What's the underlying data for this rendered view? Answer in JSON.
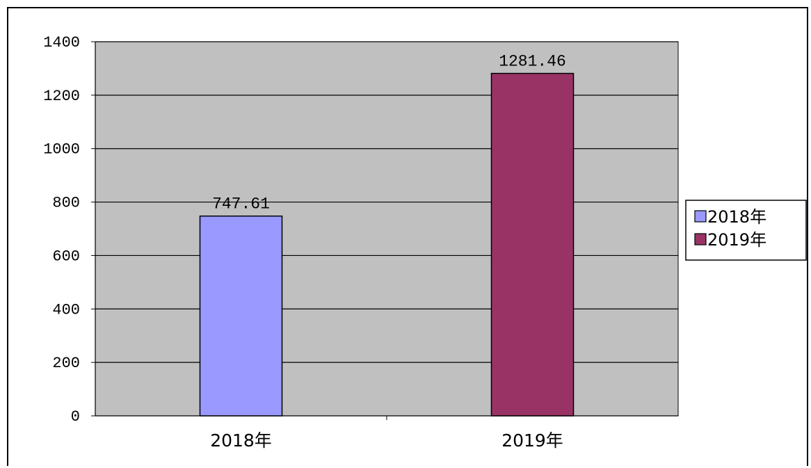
{
  "chart_data": {
    "type": "bar",
    "categories": [
      "2018年",
      "2019年"
    ],
    "values": [
      747.61,
      1281.46
    ],
    "data_labels": [
      "747.61",
      "1281.46"
    ],
    "colors": [
      "#9999ff",
      "#993366"
    ],
    "legend": {
      "entries": [
        "2018年",
        "2019年"
      ],
      "placement": "right"
    },
    "ylim": [
      0,
      1400
    ],
    "yticks": [
      0,
      200,
      400,
      600,
      800,
      1000,
      1200,
      1400
    ],
    "grid": true,
    "plot_background": "#c0c0c0",
    "title": "",
    "xlabel": "",
    "ylabel": ""
  }
}
